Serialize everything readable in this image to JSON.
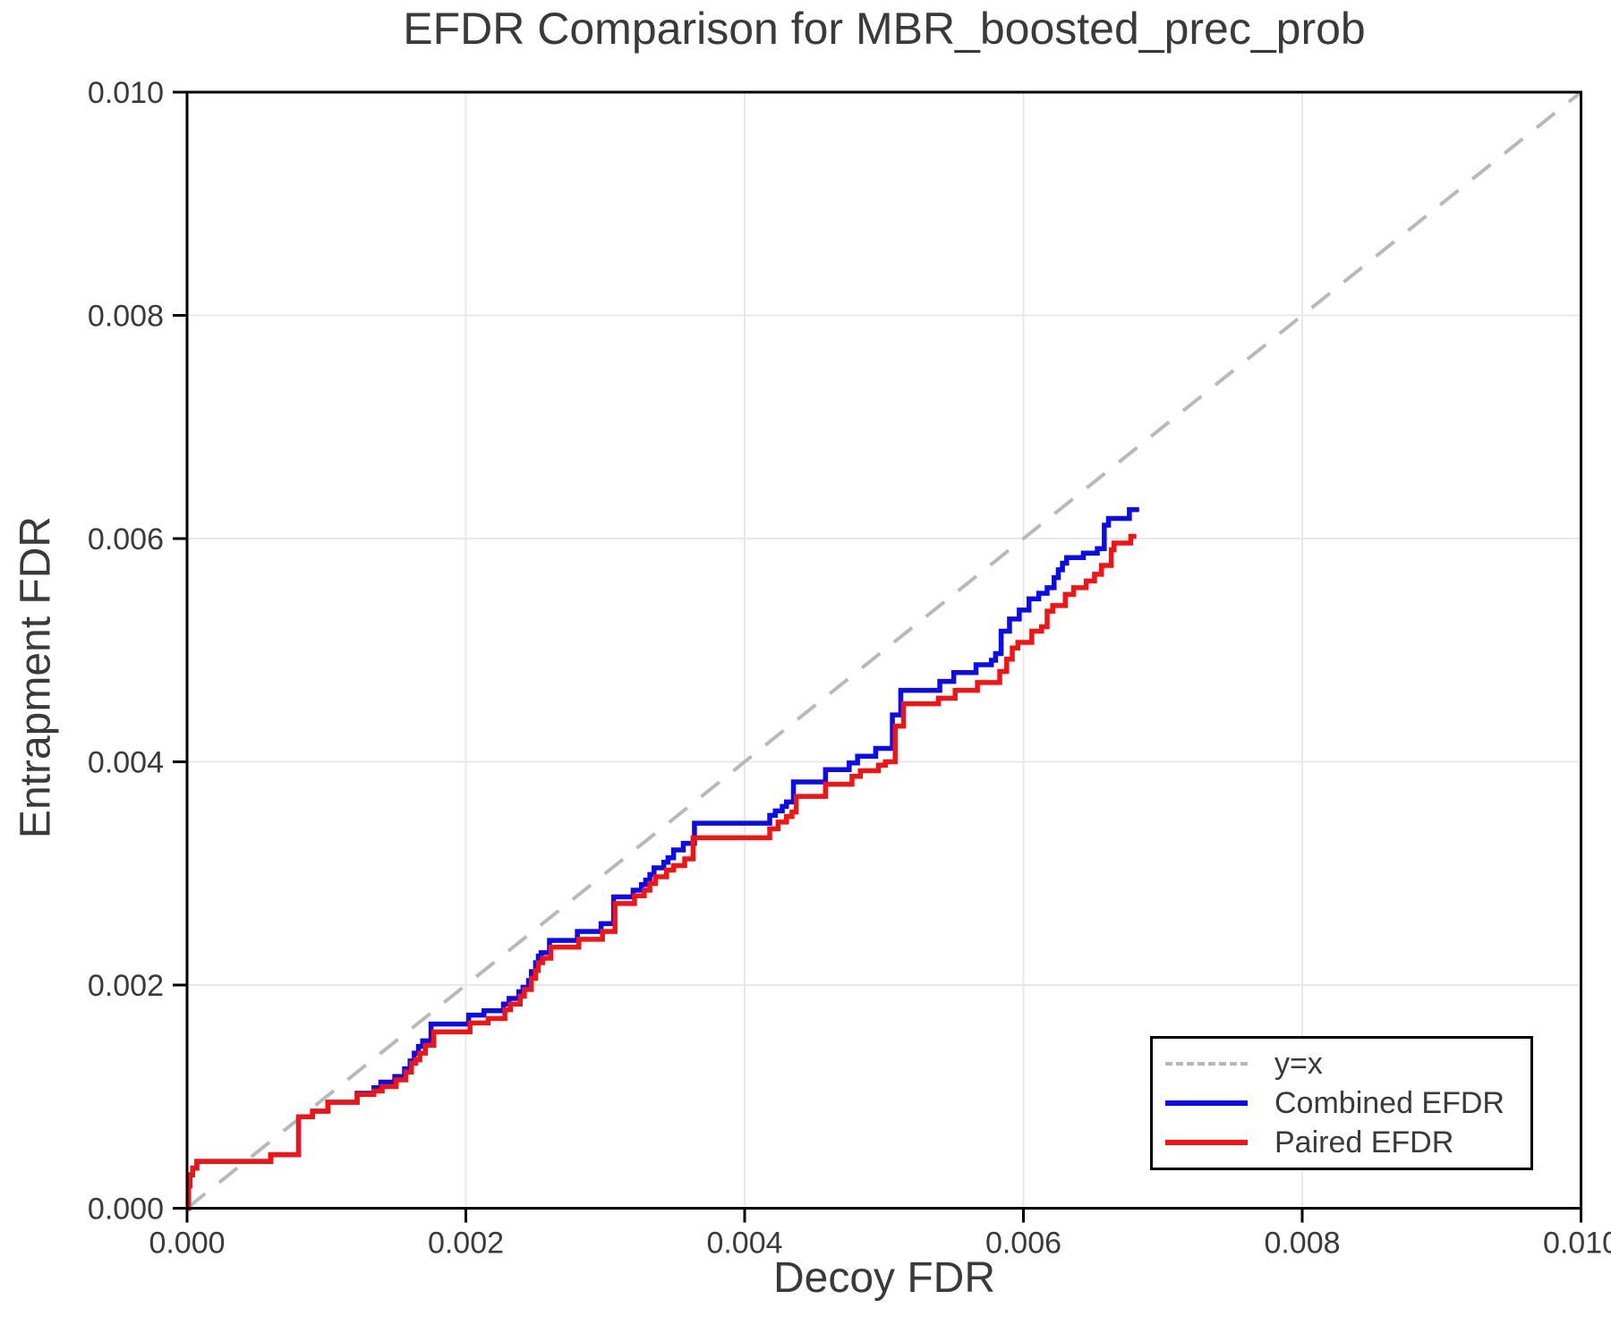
{
  "figure": {
    "background": "#ffffff",
    "text_color": "#3a3a3a"
  },
  "chart_data": {
    "type": "line",
    "title": "EFDR Comparison for MBR_boosted_prec_prob",
    "xlabel": "Decoy FDR",
    "ylabel": "Entrapment FDR",
    "xlim": [
      0.0,
      0.01
    ],
    "ylim": [
      0.0,
      0.01
    ],
    "x_tick_labels": [
      "0.000",
      "0.002",
      "0.004",
      "0.006",
      "0.008",
      "0.010"
    ],
    "y_tick_labels": [
      "0.000",
      "0.002",
      "0.004",
      "0.006",
      "0.008",
      "0.010"
    ],
    "grid": true,
    "grid_color": "#e8e8e8",
    "axis_color": "#000000",
    "legend_position": "lower right",
    "series": [
      {
        "name": "y=x",
        "style": "dashed",
        "step": false,
        "color": "#b9b9b9",
        "points": [
          [
            0.0,
            0.0
          ],
          [
            0.01,
            0.01
          ]
        ]
      },
      {
        "name": "Combined EFDR",
        "style": "solid",
        "step": true,
        "color": "#0b0bec",
        "points": [
          [
            0.0,
            0.0
          ],
          [
            1e-05,
            0.0002
          ],
          [
            2e-05,
            0.0003
          ],
          [
            4e-05,
            0.00036
          ],
          [
            7e-05,
            0.00042
          ],
          [
            0.0006,
            0.00048
          ],
          [
            0.0008,
            0.00082
          ],
          [
            0.0009,
            0.00087
          ],
          [
            0.00101,
            0.00095
          ],
          [
            0.00122,
            0.00103
          ],
          [
            0.00134,
            0.00108
          ],
          [
            0.00139,
            0.00113
          ],
          [
            0.00149,
            0.00118
          ],
          [
            0.00156,
            0.00125
          ],
          [
            0.0016,
            0.00132
          ],
          [
            0.00163,
            0.00139
          ],
          [
            0.00166,
            0.00145
          ],
          [
            0.00169,
            0.0015
          ],
          [
            0.00175,
            0.00165
          ],
          [
            0.00202,
            0.00173
          ],
          [
            0.00213,
            0.00177
          ],
          [
            0.00227,
            0.00183
          ],
          [
            0.00231,
            0.00188
          ],
          [
            0.00238,
            0.00194
          ],
          [
            0.00241,
            0.00198
          ],
          [
            0.00245,
            0.00204
          ],
          [
            0.00247,
            0.00212
          ],
          [
            0.0025,
            0.0022
          ],
          [
            0.00252,
            0.00226
          ],
          [
            0.00254,
            0.00229
          ],
          [
            0.0026,
            0.0024
          ],
          [
            0.0028,
            0.00248
          ],
          [
            0.00297,
            0.00255
          ],
          [
            0.00306,
            0.00279
          ],
          [
            0.0032,
            0.00285
          ],
          [
            0.00326,
            0.0029
          ],
          [
            0.00329,
            0.00294
          ],
          [
            0.00332,
            0.00299
          ],
          [
            0.00335,
            0.00305
          ],
          [
            0.00342,
            0.0031
          ],
          [
            0.00345,
            0.00314
          ],
          [
            0.00349,
            0.00321
          ],
          [
            0.00356,
            0.00327
          ],
          [
            0.00364,
            0.00345
          ],
          [
            0.00418,
            0.00352
          ],
          [
            0.00422,
            0.00356
          ],
          [
            0.00427,
            0.0036
          ],
          [
            0.0043,
            0.00364
          ],
          [
            0.00435,
            0.00382
          ],
          [
            0.00458,
            0.00393
          ],
          [
            0.00475,
            0.00399
          ],
          [
            0.00481,
            0.00405
          ],
          [
            0.00494,
            0.00412
          ],
          [
            0.00506,
            0.00442
          ],
          [
            0.00512,
            0.00464
          ],
          [
            0.0054,
            0.00472
          ],
          [
            0.0055,
            0.0048
          ],
          [
            0.00566,
            0.00487
          ],
          [
            0.00577,
            0.00491
          ],
          [
            0.0058,
            0.00497
          ],
          [
            0.00584,
            0.00517
          ],
          [
            0.0059,
            0.00528
          ],
          [
            0.00597,
            0.00536
          ],
          [
            0.00604,
            0.00546
          ],
          [
            0.00611,
            0.00551
          ],
          [
            0.00617,
            0.00556
          ],
          [
            0.00622,
            0.00565
          ],
          [
            0.00625,
            0.00572
          ],
          [
            0.00628,
            0.00578
          ],
          [
            0.00631,
            0.00583
          ],
          [
            0.00643,
            0.00587
          ],
          [
            0.00653,
            0.00591
          ],
          [
            0.00658,
            0.00612
          ],
          [
            0.00661,
            0.00618
          ],
          [
            0.00676,
            0.00626
          ],
          [
            0.00683,
            0.00626
          ]
        ]
      },
      {
        "name": "Paired EFDR",
        "style": "solid",
        "step": true,
        "color": "#f21414",
        "points": [
          [
            0.0,
            0.0
          ],
          [
            1e-05,
            0.0002
          ],
          [
            2e-05,
            0.0003
          ],
          [
            4e-05,
            0.00036
          ],
          [
            7e-05,
            0.00042
          ],
          [
            0.0006,
            0.00048
          ],
          [
            0.0008,
            0.00082
          ],
          [
            0.0009,
            0.00087
          ],
          [
            0.00101,
            0.00095
          ],
          [
            0.00122,
            0.00102
          ],
          [
            0.00134,
            0.00105
          ],
          [
            0.0014,
            0.00109
          ],
          [
            0.0015,
            0.00115
          ],
          [
            0.00157,
            0.00122
          ],
          [
            0.00161,
            0.0013
          ],
          [
            0.00164,
            0.00133
          ],
          [
            0.00167,
            0.00139
          ],
          [
            0.00171,
            0.00146
          ],
          [
            0.00177,
            0.00158
          ],
          [
            0.00203,
            0.00166
          ],
          [
            0.00216,
            0.0017
          ],
          [
            0.00228,
            0.00178
          ],
          [
            0.00232,
            0.00183
          ],
          [
            0.00239,
            0.0019
          ],
          [
            0.00242,
            0.00196
          ],
          [
            0.00247,
            0.00206
          ],
          [
            0.0025,
            0.00213
          ],
          [
            0.00252,
            0.0022
          ],
          [
            0.00255,
            0.00224
          ],
          [
            0.00261,
            0.00234
          ],
          [
            0.00281,
            0.00241
          ],
          [
            0.00298,
            0.00248
          ],
          [
            0.00307,
            0.00273
          ],
          [
            0.00321,
            0.0028
          ],
          [
            0.00328,
            0.00285
          ],
          [
            0.00332,
            0.00291
          ],
          [
            0.00336,
            0.00297
          ],
          [
            0.00344,
            0.00303
          ],
          [
            0.00349,
            0.00307
          ],
          [
            0.00357,
            0.00313
          ],
          [
            0.00363,
            0.00332
          ],
          [
            0.00418,
            0.0034
          ],
          [
            0.00424,
            0.00346
          ],
          [
            0.0043,
            0.00351
          ],
          [
            0.00434,
            0.00355
          ],
          [
            0.00437,
            0.00369
          ],
          [
            0.00458,
            0.0038
          ],
          [
            0.00477,
            0.00387
          ],
          [
            0.00483,
            0.00392
          ],
          [
            0.00496,
            0.00397
          ],
          [
            0.00501,
            0.004
          ],
          [
            0.00508,
            0.00432
          ],
          [
            0.00514,
            0.00452
          ],
          [
            0.00539,
            0.00457
          ],
          [
            0.00551,
            0.00464
          ],
          [
            0.00567,
            0.00471
          ],
          [
            0.00583,
            0.00481
          ],
          [
            0.00588,
            0.00492
          ],
          [
            0.00592,
            0.00502
          ],
          [
            0.00596,
            0.00507
          ],
          [
            0.00606,
            0.00517
          ],
          [
            0.00613,
            0.00521
          ],
          [
            0.00617,
            0.00535
          ],
          [
            0.00621,
            0.0054
          ],
          [
            0.0063,
            0.0055
          ],
          [
            0.00636,
            0.00556
          ],
          [
            0.00645,
            0.00562
          ],
          [
            0.00651,
            0.00568
          ],
          [
            0.00656,
            0.00576
          ],
          [
            0.00663,
            0.0059
          ],
          [
            0.00665,
            0.00596
          ],
          [
            0.00677,
            0.00602
          ],
          [
            0.00681,
            0.00602
          ]
        ]
      }
    ]
  }
}
